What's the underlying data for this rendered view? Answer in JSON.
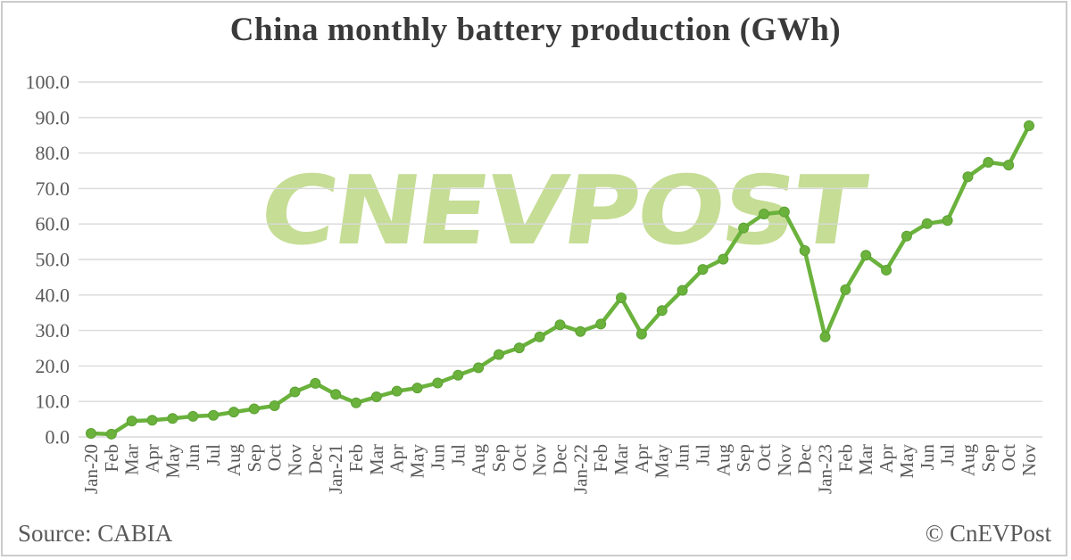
{
  "title": "China monthly battery production (GWh)",
  "watermark": "CNEVPOST",
  "footer": {
    "source": "Source: CABIA",
    "credit": "© CnEVPost"
  },
  "colors": {
    "line": "#6ab23c",
    "marker_fill": "#6ab23c",
    "marker_edge": "#5ca133",
    "grid": "#d9d9d9",
    "tick_text": "#595959",
    "title_text": "#3a3a3a",
    "watermark": "#c6dd95",
    "border": "#cbcbcb"
  },
  "chart_data": {
    "type": "line",
    "title": "China monthly battery production (GWh)",
    "xlabel": "",
    "ylabel": "",
    "ylim": [
      0,
      100
    ],
    "yticks": [
      0,
      10,
      20,
      30,
      40,
      50,
      60,
      70,
      80,
      90,
      100
    ],
    "ytick_format": "one_decimal",
    "grid": true,
    "legend": "none",
    "marker": "circle",
    "x": [
      "Jan-20",
      "Feb",
      "Mar",
      "Apr",
      "May",
      "Jun",
      "Jul",
      "Aug",
      "Sep",
      "Oct",
      "Nov",
      "Dec",
      "Jan-21",
      "Feb",
      "Mar",
      "Apr",
      "May",
      "Jun",
      "Jul",
      "Aug",
      "Sep",
      "Oct",
      "Nov",
      "Dec",
      "Jan-22",
      "Feb",
      "Mar",
      "Apr",
      "May",
      "Jun",
      "Jul",
      "Aug",
      "Sep",
      "Oct",
      "Nov",
      "Dec",
      "Jan-23",
      "Feb",
      "Mar",
      "Apr",
      "May",
      "Jun",
      "Jul",
      "Aug",
      "Sep",
      "Oct",
      "Nov"
    ],
    "series": [
      {
        "name": "China monthly battery production (GWh)",
        "values": [
          1.0,
          0.8,
          4.5,
          4.7,
          5.2,
          5.8,
          6.1,
          7.0,
          7.9,
          8.8,
          12.7,
          15.1,
          12.0,
          9.6,
          11.3,
          12.9,
          13.8,
          15.2,
          17.4,
          19.5,
          23.2,
          25.1,
          28.2,
          31.6,
          29.7,
          31.8,
          39.2,
          29.0,
          35.6,
          41.3,
          47.2,
          50.1,
          58.9,
          62.8,
          63.4,
          52.5,
          28.2,
          41.5,
          51.2,
          47.0,
          56.6,
          60.1,
          61.0,
          73.3,
          77.4,
          76.6,
          87.7
        ]
      }
    ]
  }
}
